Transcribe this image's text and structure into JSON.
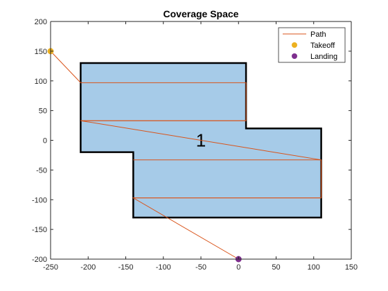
{
  "chart_data": {
    "type": "line",
    "title": "Coverage Space",
    "xlabel": "",
    "ylabel": "",
    "xlim": [
      -250,
      150
    ],
    "ylim": [
      -200,
      200
    ],
    "xticks": [
      -250,
      -200,
      -150,
      -100,
      -50,
      0,
      50,
      100,
      150
    ],
    "yticks": [
      -200,
      -150,
      -100,
      -50,
      0,
      50,
      100,
      150,
      200
    ],
    "grid": false,
    "legend_position": "top-right",
    "polygon": {
      "label": "1",
      "label_at": [
        -50,
        0
      ],
      "fill_color": "#a6cbe8",
      "edge_color": "#000000",
      "vertices": [
        [
          -210,
          130
        ],
        [
          10,
          130
        ],
        [
          10,
          20
        ],
        [
          110,
          20
        ],
        [
          110,
          -130
        ],
        [
          -140,
          -130
        ],
        [
          -140,
          -20
        ],
        [
          -210,
          -20
        ]
      ]
    },
    "series": [
      {
        "name": "Path",
        "kind": "line",
        "color": "#d95319",
        "x": [
          -250,
          -210,
          10,
          10,
          -210,
          110,
          110,
          -140,
          0
        ],
        "y": [
          150,
          97,
          97,
          33,
          33,
          -33,
          -97,
          -97,
          -200
        ]
      },
      {
        "name": "Takeoff",
        "kind": "marker",
        "color": "#edb120",
        "x": [
          -250
        ],
        "y": [
          150
        ]
      },
      {
        "name": "Landing",
        "kind": "marker",
        "color": "#7e2f8e",
        "x": [
          0
        ],
        "y": [
          -200
        ]
      }
    ],
    "extra_lines": [
      {
        "color": "#d95319",
        "x": [
          -210,
          10
        ],
        "y": [
          33,
          33
        ]
      },
      {
        "color": "#d95319",
        "x": [
          -140,
          110
        ],
        "y": [
          -33,
          -33
        ]
      },
      {
        "color": "#d95319",
        "x": [
          -140,
          110
        ],
        "y": [
          -97,
          -97
        ]
      },
      {
        "color": "#d95319",
        "x": [
          110,
          110
        ],
        "y": [
          -33,
          -97
        ]
      }
    ]
  }
}
